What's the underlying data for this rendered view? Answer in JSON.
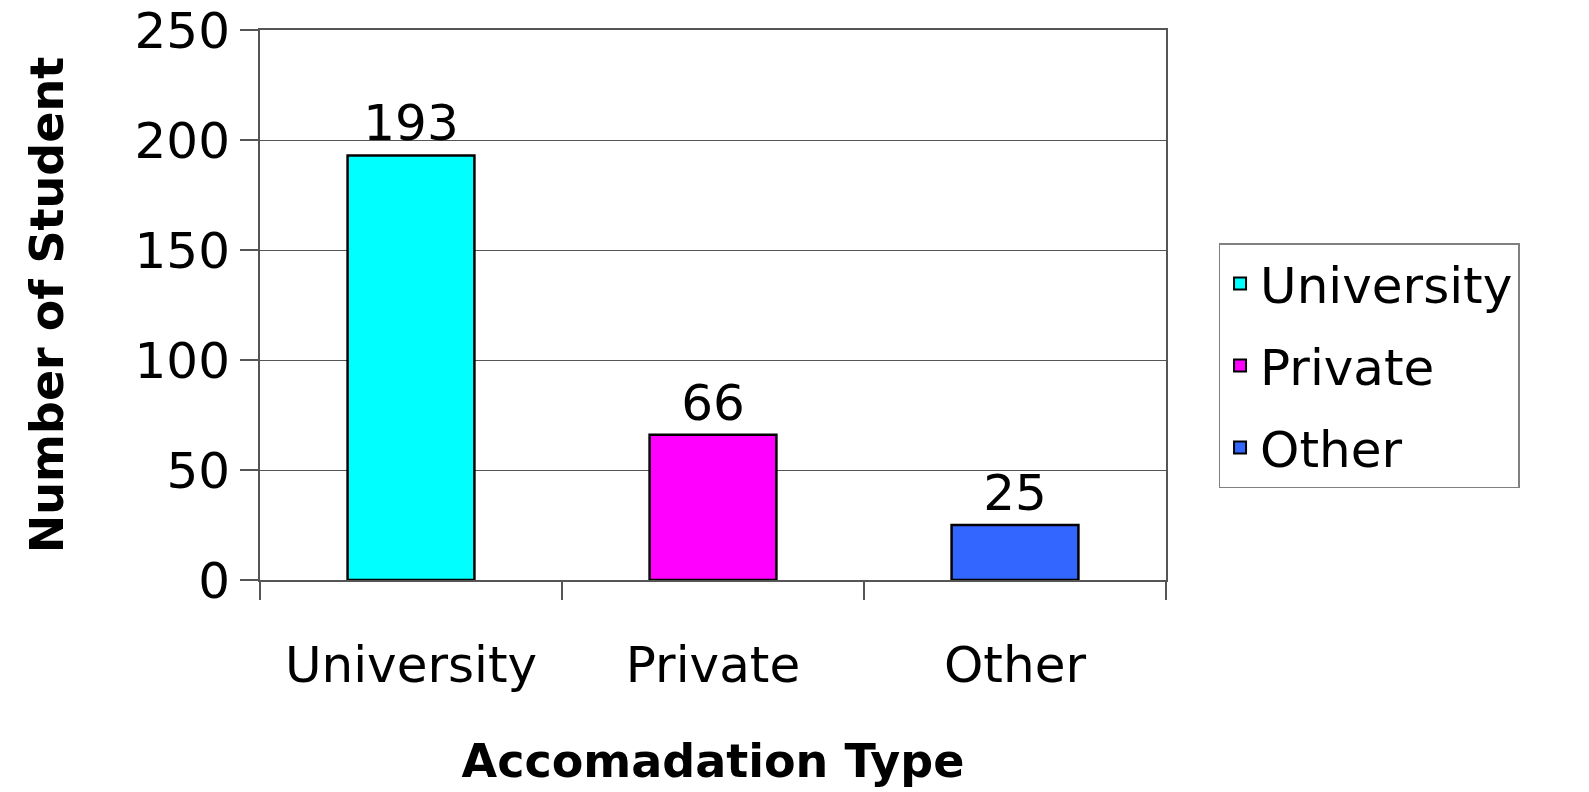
{
  "chart_data": {
    "type": "bar",
    "xlabel": "Accomadation Type",
    "ylabel": "Number of Student",
    "categories": [
      "University",
      "Private",
      "Other"
    ],
    "series": [
      {
        "name": "University",
        "color": "#00ffff",
        "values": [
          193,
          null,
          null
        ]
      },
      {
        "name": "Private",
        "color": "#ff00ff",
        "values": [
          null,
          66,
          null
        ]
      },
      {
        "name": "Other",
        "color": "#3366ff",
        "values": [
          null,
          null,
          25
        ]
      }
    ],
    "ylim": [
      0,
      250
    ],
    "yticks": [
      0,
      50,
      100,
      150,
      200,
      250
    ],
    "grid": "y",
    "data_labels": true,
    "legend": "right"
  }
}
